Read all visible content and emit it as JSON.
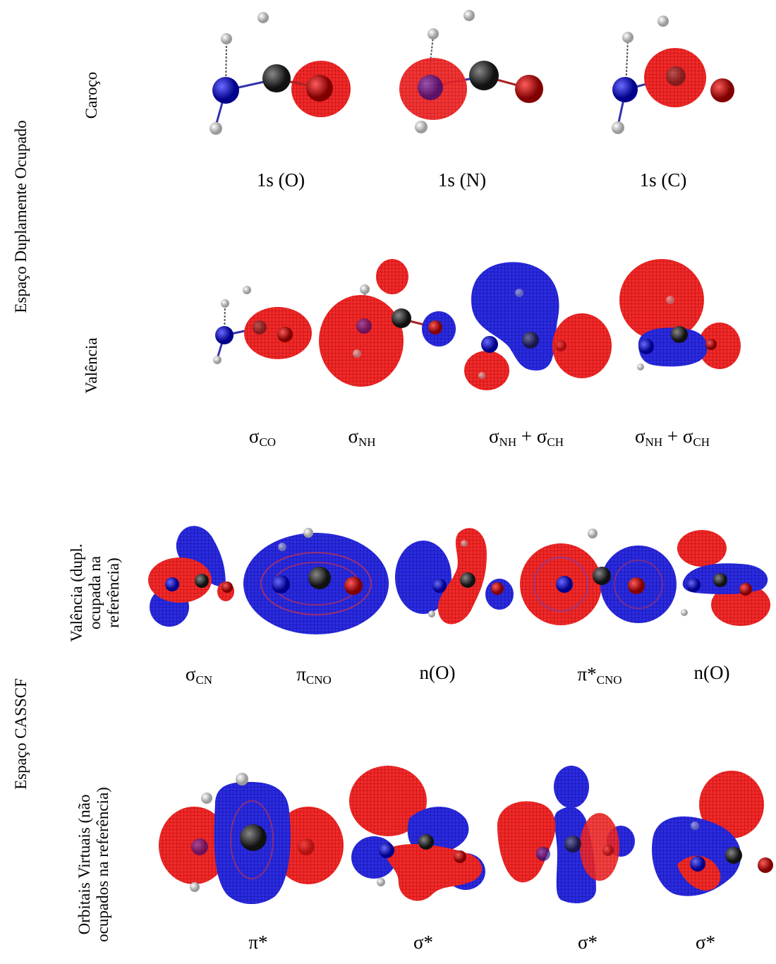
{
  "groups": {
    "top": "Espaço Duplamente Ocupado",
    "bottom": "Espaço CASSCF"
  },
  "rows": {
    "core": "Caroço",
    "valence": "Valência",
    "valence_ref_line1": "Valência (dupl.",
    "valence_ref_line2": "ocupada na",
    "valence_ref_line3": "referência)",
    "virtual_line1": "Orbitais Virtuais (não",
    "virtual_line2": "ocupados na referência)"
  },
  "core_captions": [
    "1s (O)",
    "1s (N)",
    "1s (C)"
  ],
  "valence_captions": [
    {
      "base": "σ",
      "sub": "CO",
      "extra": "",
      "sub2": ""
    },
    {
      "base": "σ",
      "sub": "NH",
      "extra": "",
      "sub2": ""
    },
    {
      "base": "σ",
      "sub": "NH",
      "extra": " + σ",
      "sub2": "CH"
    },
    {
      "base": "σ",
      "sub": "NH",
      "extra": " + σ",
      "sub2": "CH"
    }
  ],
  "active_captions": [
    {
      "base": "σ",
      "sub": "CN"
    },
    {
      "base": "π",
      "sub": "CNO"
    },
    {
      "base": "n(O)",
      "sub": ""
    },
    {
      "base": "π*",
      "sub": "CNO"
    },
    {
      "base": "n(O)",
      "sub": ""
    }
  ],
  "virtual_captions": [
    "π*",
    "σ*",
    "σ*",
    "σ*"
  ],
  "colors": {
    "lobe_positive": "#e8141c",
    "lobe_negative": "#1f1fd8",
    "nitrogen": "#1010c8",
    "carbon": "#2a2a2a",
    "oxygen": "#c80000",
    "hydrogen": "#d8d8d8"
  }
}
